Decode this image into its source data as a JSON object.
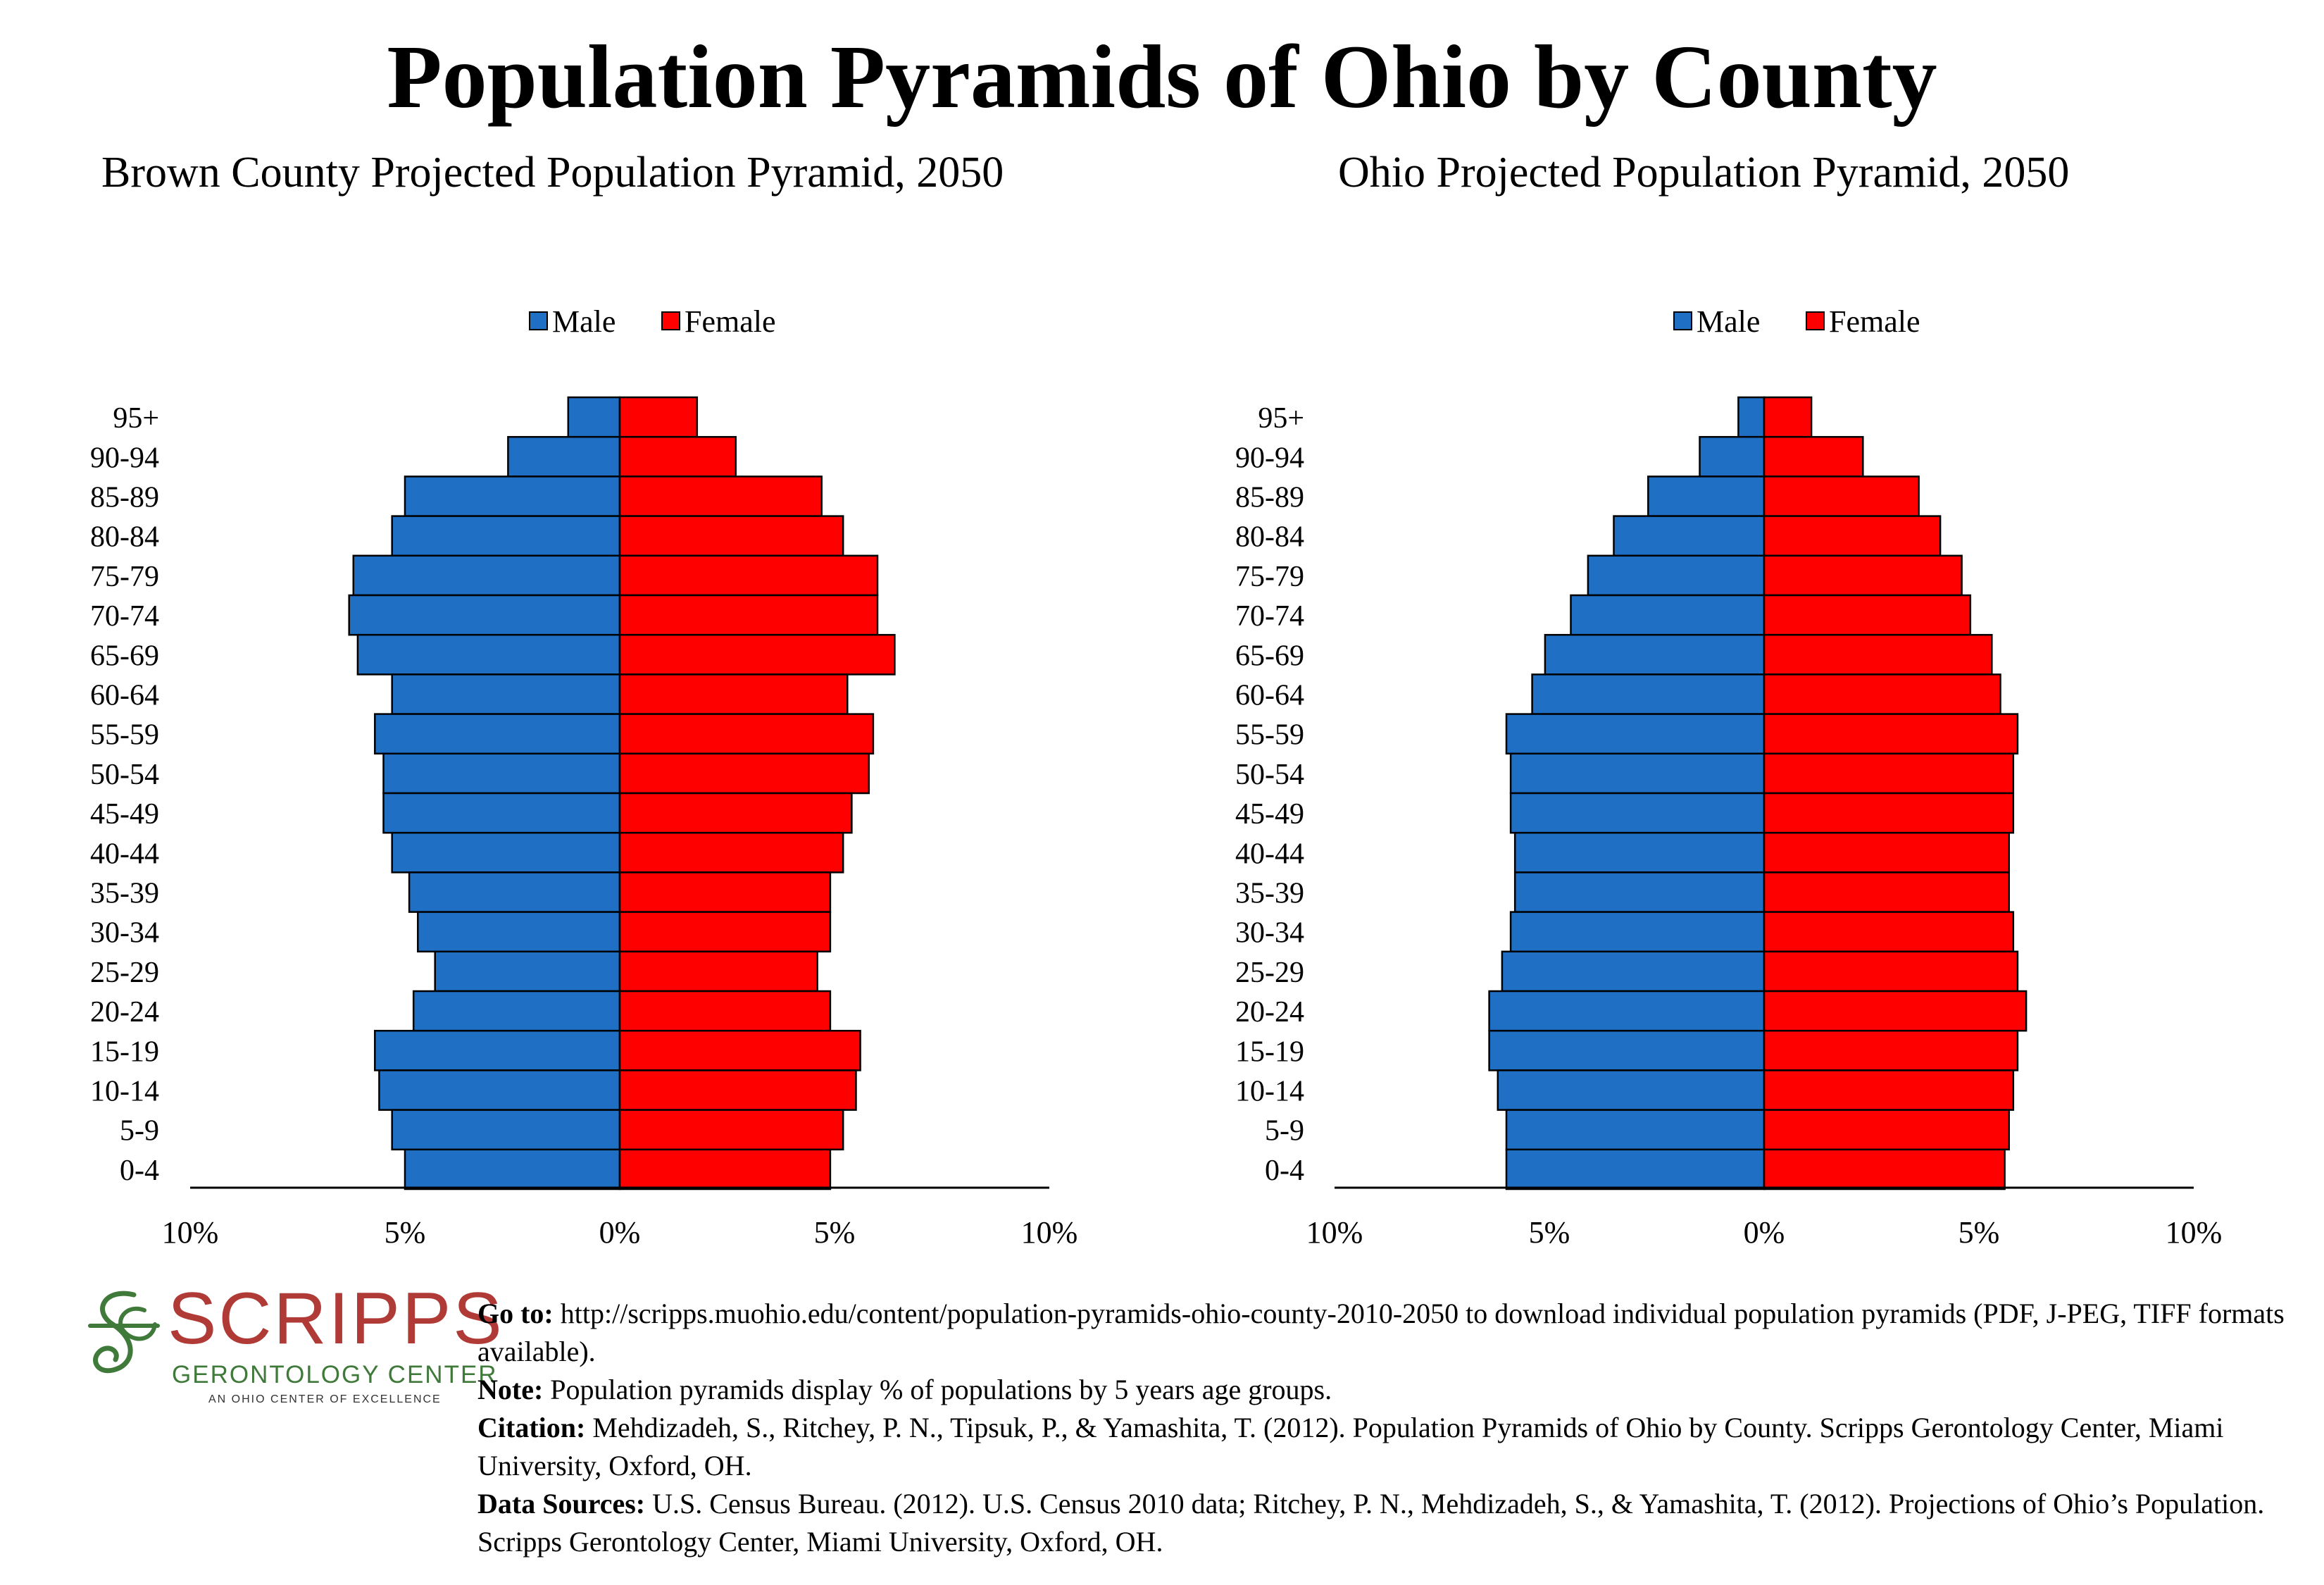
{
  "main_title": "Population Pyramids of Ohio by County",
  "colors": {
    "male": "#1f6fc5",
    "female": "#ff0000",
    "axis": "#000000"
  },
  "chart_data": [
    {
      "type": "bar",
      "title": "Brown County Projected Population Pyramid, 2050",
      "legend": {
        "position": "top-center",
        "labels": [
          "Male",
          "Female"
        ]
      },
      "categories": [
        "95+",
        "90-94",
        "85-89",
        "80-84",
        "75-79",
        "70-74",
        "65-69",
        "60-64",
        "55-59",
        "50-54",
        "45-49",
        "40-44",
        "35-39",
        "30-34",
        "25-29",
        "20-24",
        "15-19",
        "10-14",
        "5-9",
        "0-4"
      ],
      "series": [
        {
          "name": "Male",
          "values": [
            1.2,
            2.6,
            5.0,
            5.3,
            6.2,
            6.3,
            6.1,
            5.3,
            5.7,
            5.5,
            5.5,
            5.3,
            4.9,
            4.7,
            4.3,
            4.8,
            5.7,
            5.6,
            5.3,
            5.0
          ]
        },
        {
          "name": "Female",
          "values": [
            1.8,
            2.7,
            4.7,
            5.2,
            6.0,
            6.0,
            6.4,
            5.3,
            5.9,
            5.8,
            5.4,
            5.2,
            4.9,
            4.9,
            4.6,
            4.9,
            5.6,
            5.5,
            5.2,
            4.9
          ]
        }
      ],
      "xlim": [
        -10,
        10
      ],
      "x_ticks": [
        "10%",
        "5%",
        "0%",
        "5%",
        "10%"
      ],
      "grid": false
    },
    {
      "type": "bar",
      "title": "Ohio Projected Population Pyramid, 2050",
      "legend": {
        "position": "top-center",
        "labels": [
          "Male",
          "Female"
        ]
      },
      "categories": [
        "95+",
        "90-94",
        "85-89",
        "80-84",
        "75-79",
        "70-74",
        "65-69",
        "60-64",
        "55-59",
        "50-54",
        "45-49",
        "40-44",
        "35-39",
        "30-34",
        "25-29",
        "20-24",
        "15-19",
        "10-14",
        "5-9",
        "0-4"
      ],
      "series": [
        {
          "name": "Male",
          "values": [
            0.6,
            1.5,
            2.7,
            3.5,
            4.1,
            4.5,
            5.1,
            5.4,
            6.0,
            5.9,
            5.9,
            5.8,
            5.8,
            5.9,
            6.1,
            6.4,
            6.4,
            6.2,
            6.0,
            6.0
          ]
        },
        {
          "name": "Female",
          "values": [
            1.1,
            2.3,
            3.6,
            4.1,
            4.6,
            4.8,
            5.3,
            5.5,
            5.9,
            5.8,
            5.8,
            5.7,
            5.7,
            5.8,
            5.9,
            6.1,
            5.9,
            5.8,
            5.7,
            5.6
          ]
        }
      ],
      "xlim": [
        -10,
        10
      ],
      "x_ticks": [
        "10%",
        "5%",
        "0%",
        "5%",
        "10%"
      ],
      "grid": false
    }
  ],
  "logo": {
    "word": "SCRIPPS",
    "subtitle": "GERONTOLOGY CENTER",
    "tagline": "AN OHIO CENTER OF EXCELLENCE"
  },
  "footer": {
    "goto_label": "Go to:",
    "goto_text": "http://scripps.muohio.edu/content/population-pyramids-ohio-county-2010-2050 to download individual population pyramids (PDF, J-PEG, TIFF formats available).",
    "note_label": "Note:",
    "note_text": "Population pyramids display % of populations by 5 years age groups.",
    "citation_label": "Citation:",
    "citation_text": "Mehdizadeh, S., Ritchey, P. N., Tipsuk, P., & Yamashita, T. (2012). Population Pyramids of Ohio by County. Scripps Gerontology Center, Miami University, Oxford, OH.",
    "sources_label": "Data Sources:",
    "sources_text": "U.S. Census Bureau. (2012). U.S. Census 2010 data; Ritchey, P. N., Mehdizadeh, S., & Yamashita, T. (2012). Projections of Ohio’s Population. Scripps Gerontology Center, Miami University, Oxford, OH."
  }
}
